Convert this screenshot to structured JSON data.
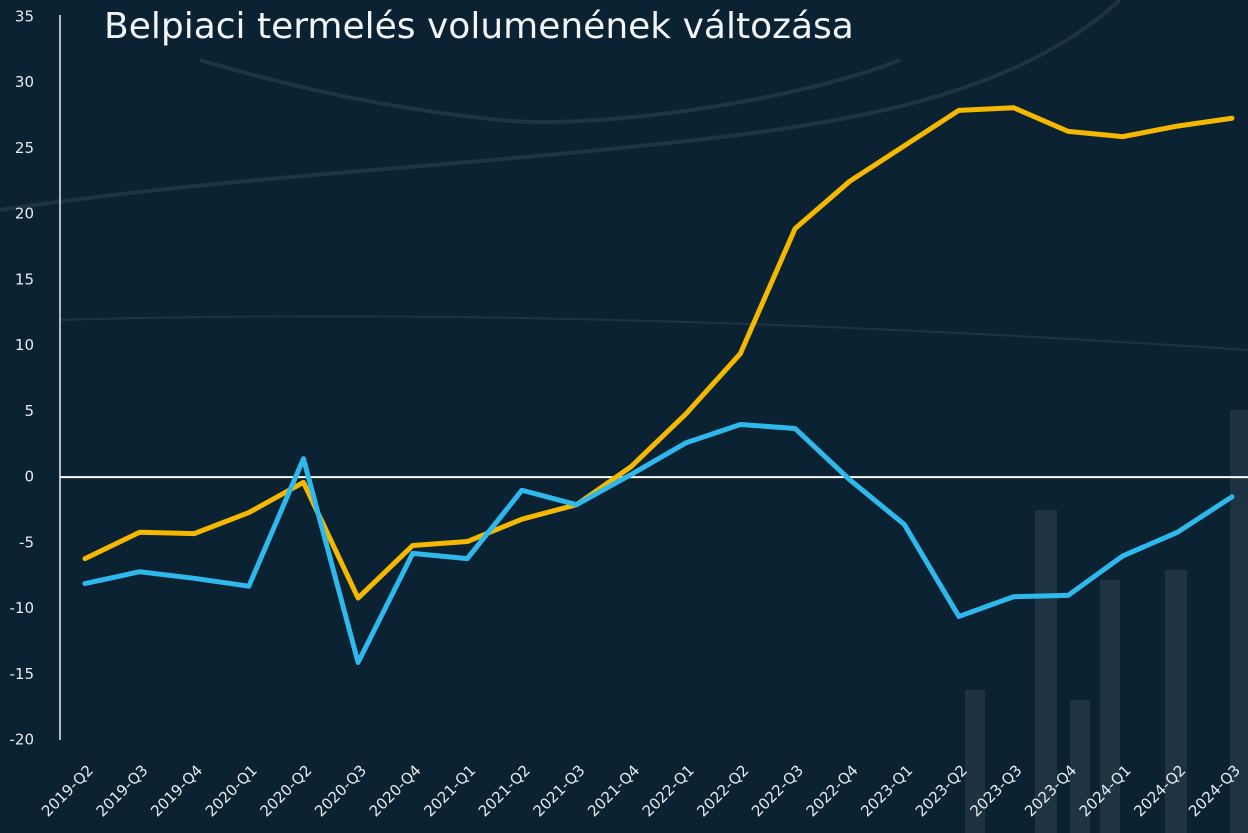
{
  "chart_data": {
    "type": "line",
    "title": "Belpiaci termelés volumenének változása",
    "categories": [
      "2019-Q2",
      "2019-Q3",
      "2019-Q4",
      "2020-Q1",
      "2020-Q2",
      "2020-Q3",
      "2020-Q4",
      "2021-Q1",
      "2021-Q2",
      "2021-Q3",
      "2021-Q4",
      "2022-Q1",
      "2022-Q2",
      "2022-Q3",
      "2022-Q4",
      "2023-Q1",
      "2023-Q2",
      "2023-Q3",
      "2023-Q4",
      "2024-Q1",
      "2024-Q2",
      "2024-Q3"
    ],
    "series": [
      {
        "color": "#f5b800",
        "values": [
          -6.2,
          -4.2,
          -4.3,
          -2.7,
          -0.4,
          -9.2,
          -5.2,
          -4.9,
          -3.2,
          -2.1,
          0.8,
          4.8,
          9.4,
          18.9,
          22.5,
          25.2,
          27.9,
          28.1,
          26.3,
          25.9,
          26.7,
          27.3
        ]
      },
      {
        "color": "#2fb8ec",
        "values": [
          -8.1,
          -7.2,
          -7.7,
          -8.3,
          1.4,
          -14.1,
          -5.8,
          -6.2,
          -1.0,
          -2.1,
          0.2,
          2.6,
          4.0,
          3.7,
          -0.2,
          -3.6,
          -10.6,
          -9.1,
          -9.0,
          -6.0,
          -4.2,
          -1.5
        ]
      }
    ],
    "ylim": [
      -20,
      35
    ],
    "yticks": [
      -20,
      -15,
      -10,
      -5,
      0,
      5,
      10,
      15,
      20,
      25,
      30,
      35
    ],
    "zero_line": true
  }
}
